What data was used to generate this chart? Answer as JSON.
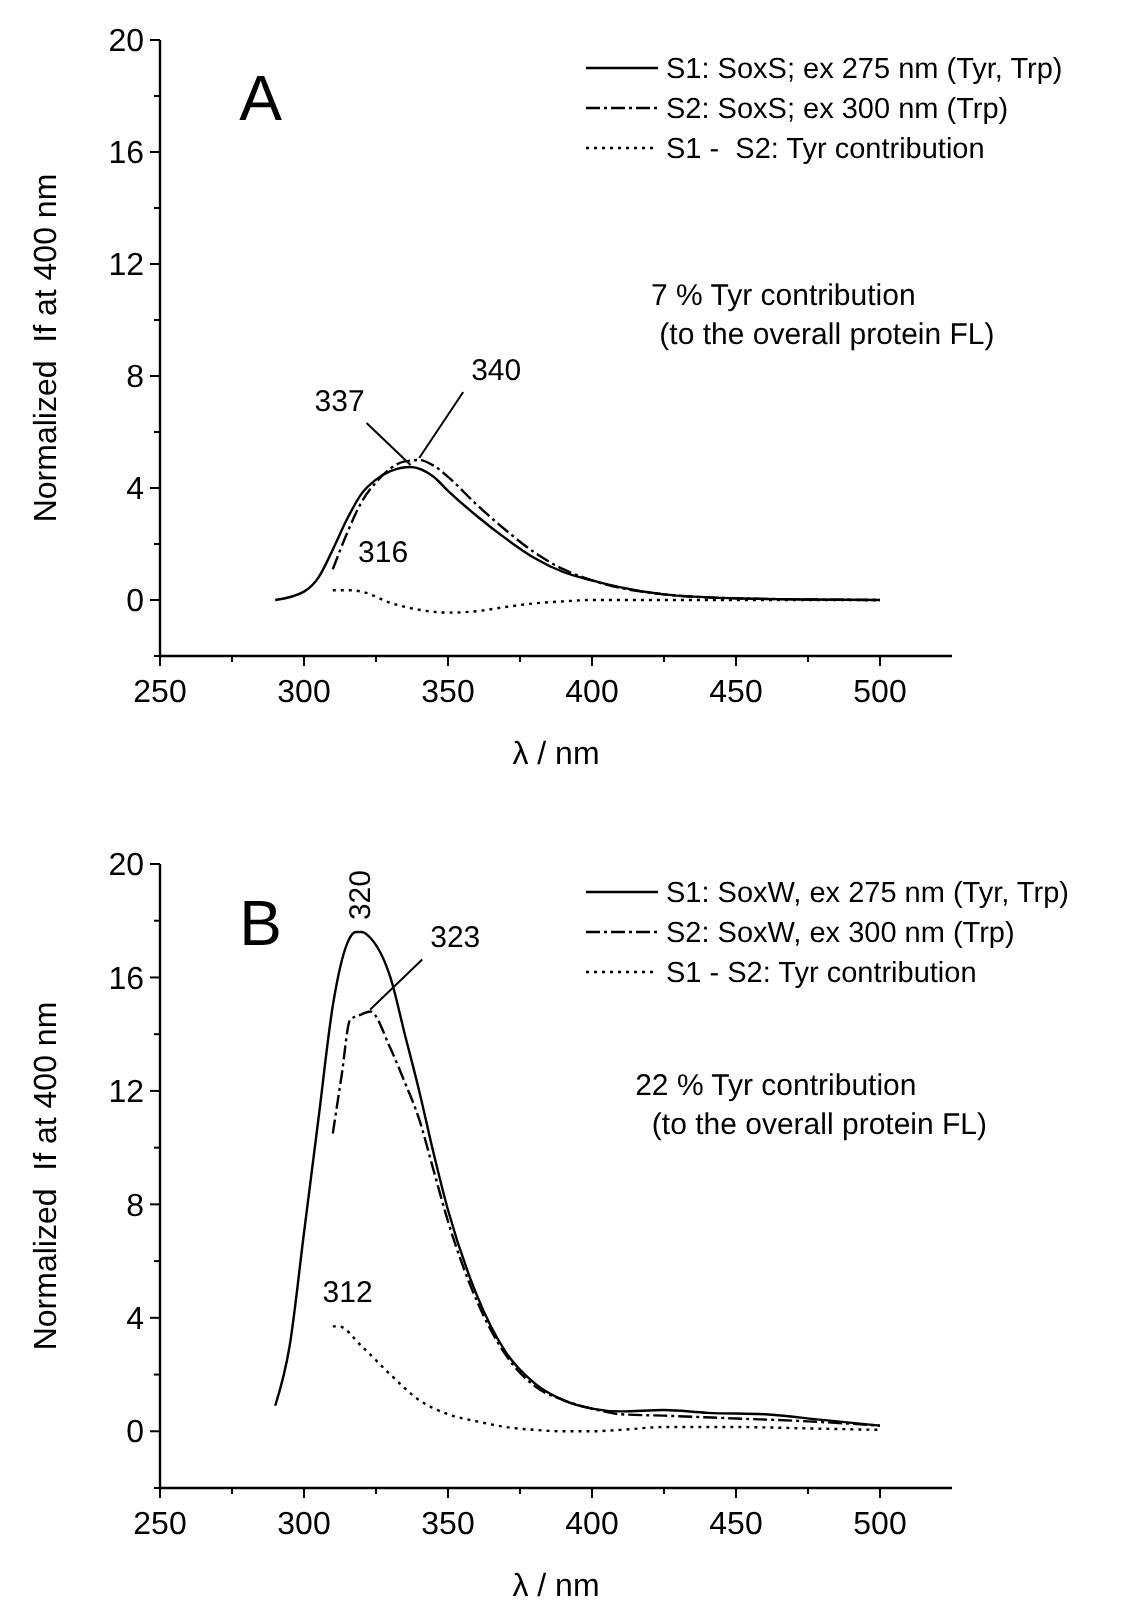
{
  "chart_data": [
    {
      "type": "line",
      "xlabel": "λ / nm",
      "ylabel": "Normalized  If at 400 nm",
      "xlim": [
        250,
        525
      ],
      "ylim": [
        -2,
        20
      ],
      "xticks": [
        250,
        {
          "value": 275,
          "label": null
        },
        300,
        {
          "value": 325,
          "label": null
        },
        350,
        {
          "value": 375,
          "label": null
        },
        400,
        {
          "value": 425,
          "label": null
        },
        450,
        {
          "value": 475,
          "label": null
        },
        500
      ],
      "yticks": [
        {
          "value": -2,
          "label": null
        },
        0,
        {
          "value": 2,
          "label": null
        },
        4,
        {
          "value": 6,
          "label": null
        },
        8,
        {
          "value": 10,
          "label": null
        },
        12,
        {
          "value": 14,
          "label": null
        },
        16,
        {
          "value": 18,
          "label": null
        },
        20
      ],
      "legend": "top right",
      "grid": false,
      "marker": "none",
      "series": [
        {
          "name": "S1: SoxS; ex 275 nm (Tyr, Trp)",
          "color": "#000000",
          "line_style": "solid",
          "x": [
            290,
            300,
            305,
            310,
            315,
            320,
            325,
            330,
            337,
            345,
            350,
            360,
            370,
            380,
            390,
            400,
            410,
            425,
            450,
            475,
            500
          ],
          "values": [
            0,
            0.3,
            0.8,
            1.8,
            2.9,
            3.8,
            4.3,
            4.6,
            4.75,
            4.4,
            3.9,
            3.0,
            2.2,
            1.5,
            1.0,
            0.7,
            0.45,
            0.2,
            0.06,
            0.02,
            0
          ]
        },
        {
          "name": "S2: SoxS; ex 300 nm (Trp)",
          "color": "#000000",
          "line_style": "dashed",
          "x": [
            310,
            315,
            320,
            325,
            330,
            335,
            340,
            345,
            350,
            360,
            370,
            380,
            390,
            400,
            425,
            450,
            500
          ],
          "values": [
            1.1,
            2.4,
            3.5,
            4.2,
            4.7,
            4.95,
            5.0,
            4.8,
            4.4,
            3.4,
            2.5,
            1.7,
            1.1,
            0.7,
            0.2,
            0.06,
            0
          ]
        },
        {
          "name": "S1 -  S2: Tyr contribution",
          "color": "#000000",
          "line_style": "dotted",
          "x": [
            310,
            316,
            320,
            330,
            340,
            350,
            360,
            370,
            380,
            390,
            400,
            425,
            450,
            500
          ],
          "values": [
            0.35,
            0.35,
            0.3,
            -0.1,
            -0.35,
            -0.45,
            -0.4,
            -0.25,
            -0.12,
            -0.05,
            0,
            0,
            0,
            0
          ]
        }
      ],
      "annotations": [
        "A",
        {
          "text": "337",
          "x": 337,
          "y": 4.75
        },
        {
          "text": "340",
          "x": 340,
          "y": 5.0
        },
        {
          "text": "316",
          "x": 316,
          "y": 0.35
        },
        "7 % Tyr contribution\n (to the overall protein FL)"
      ]
    },
    {
      "type": "line",
      "xlabel": "λ / nm",
      "ylabel": "Normalized  If at 400 nm",
      "xlim": [
        250,
        525
      ],
      "ylim": [
        -2,
        20
      ],
      "xticks": [
        250,
        {
          "value": 275,
          "label": null
        },
        300,
        {
          "value": 325,
          "label": null
        },
        350,
        {
          "value": 375,
          "label": null
        },
        400,
        {
          "value": 425,
          "label": null
        },
        450,
        {
          "value": 475,
          "label": null
        },
        500
      ],
      "yticks": [
        {
          "value": -2,
          "label": null
        },
        0,
        {
          "value": 2,
          "label": null
        },
        4,
        {
          "value": 6,
          "label": null
        },
        8,
        {
          "value": 10,
          "label": null
        },
        12,
        {
          "value": 14,
          "label": null
        },
        16,
        {
          "value": 18,
          "label": null
        },
        20
      ],
      "legend": "top right",
      "grid": false,
      "marker": "none",
      "series": [
        {
          "name": "S1: SoxW, ex 275 nm (Tyr, Trp)",
          "color": "#000000",
          "line_style": "solid",
          "x": [
            290,
            295,
            300,
            305,
            310,
            315,
            318,
            320,
            323,
            330,
            335,
            340,
            345,
            350,
            360,
            370,
            380,
            390,
            400,
            410,
            425,
            440,
            460,
            480,
            500
          ],
          "values": [
            0.9,
            3,
            7,
            11,
            15,
            17.2,
            17.6,
            17.6,
            17.4,
            16,
            14,
            12,
            9.8,
            7.8,
            4.8,
            2.8,
            1.7,
            1.1,
            0.8,
            0.7,
            0.75,
            0.65,
            0.6,
            0.4,
            0.2
          ]
        },
        {
          "name": "S2: SoxW, ex 300 nm (Trp)",
          "color": "#000000",
          "line_style": "dashed",
          "x": [
            310,
            313,
            316,
            320,
            323,
            330,
            335,
            340,
            345,
            350,
            360,
            370,
            380,
            390,
            400,
            410,
            425,
            450,
            475,
            500
          ],
          "values": [
            10.5,
            12.5,
            14.5,
            14.7,
            14.8,
            13.5,
            12.3,
            11,
            9.2,
            7.4,
            4.6,
            2.7,
            1.6,
            1.1,
            0.8,
            0.6,
            0.55,
            0.45,
            0.35,
            0.2
          ]
        },
        {
          "name": "S1 - S2: Tyr contribution",
          "color": "#000000",
          "line_style": "dotted",
          "x": [
            310,
            312,
            320,
            330,
            340,
            350,
            360,
            370,
            380,
            390,
            400,
            410,
            425,
            450,
            475,
            500
          ],
          "values": [
            3.7,
            3.7,
            3.0,
            2.0,
            1.1,
            0.6,
            0.35,
            0.15,
            0.05,
            0,
            0,
            0.05,
            0.15,
            0.15,
            0.1,
            0.05
          ]
        }
      ],
      "annotations": [
        "B",
        {
          "text": "320",
          "x": 320,
          "y": 17.6
        },
        {
          "text": "323",
          "x": 323,
          "y": 14.8
        },
        {
          "text": "312",
          "x": 312,
          "y": 3.7
        },
        "22 % Tyr contribution\n  (to the overall protein FL)"
      ]
    }
  ]
}
